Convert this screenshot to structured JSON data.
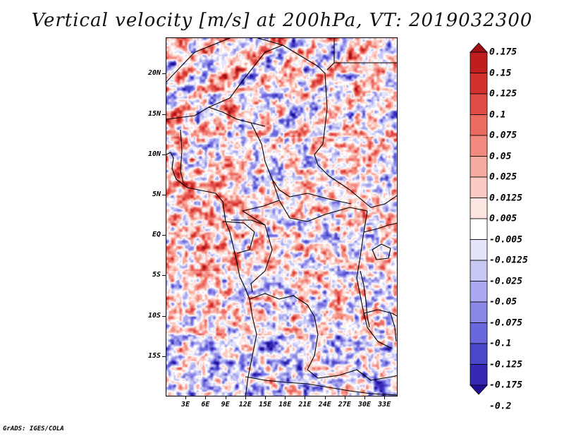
{
  "title": "Vertical velocity [m/s] at 200hPa, VT: 2019032300",
  "credit": "GrADS: IGES/COLA",
  "chart_data": {
    "type": "heatmap",
    "title": "Vertical velocity [m/s] at 200hPa, VT: 2019032300",
    "variable": "Vertical velocity",
    "units": "m/s",
    "level": "200hPa",
    "valid_time": "2019032300",
    "lon_range": [
      0,
      35
    ],
    "lat_range": [
      -20,
      24.5
    ],
    "lat_ticks": [
      {
        "value": 20,
        "label": "20N"
      },
      {
        "value": 15,
        "label": "15N"
      },
      {
        "value": 10,
        "label": "10N"
      },
      {
        "value": 5,
        "label": "5N"
      },
      {
        "value": 0,
        "label": "EQ"
      },
      {
        "value": -5,
        "label": "5S"
      },
      {
        "value": -10,
        "label": "10S"
      },
      {
        "value": -15,
        "label": "15S"
      }
    ],
    "lon_ticks": [
      {
        "value": 3,
        "label": "3E"
      },
      {
        "value": 6,
        "label": "6E"
      },
      {
        "value": 9,
        "label": "9E"
      },
      {
        "value": 12,
        "label": "12E"
      },
      {
        "value": 15,
        "label": "15E"
      },
      {
        "value": 18,
        "label": "18E"
      },
      {
        "value": 21,
        "label": "21E"
      },
      {
        "value": 24,
        "label": "24E"
      },
      {
        "value": 27,
        "label": "27E"
      },
      {
        "value": 30,
        "label": "30E"
      },
      {
        "value": 33,
        "label": "33E"
      }
    ],
    "colorbar": {
      "labels": [
        "0.175",
        "0.15",
        "0.125",
        "0.1",
        "0.075",
        "0.05",
        "0.025",
        "0.0125",
        "0.005",
        "-0.005",
        "-0.0125",
        "-0.025",
        "-0.05",
        "-0.075",
        "-0.1",
        "-0.125",
        "-0.175",
        "-0.2"
      ],
      "colors": [
        "#a00f14",
        "#be1e1e",
        "#d2322d",
        "#e14b45",
        "#eb6a62",
        "#f28a80",
        "#f7aaa0",
        "#fbcac2",
        "#fde6e2",
        "#ffffff",
        "#e4e4fb",
        "#c8c8f5",
        "#aaa8ef",
        "#8a87e6",
        "#6a66db",
        "#4b46cc",
        "#3428b4",
        "#230f96"
      ]
    },
    "field_colors": {
      "positive": "#e8706a",
      "negative": "#7270e3",
      "neutral": "#ffffff"
    }
  }
}
